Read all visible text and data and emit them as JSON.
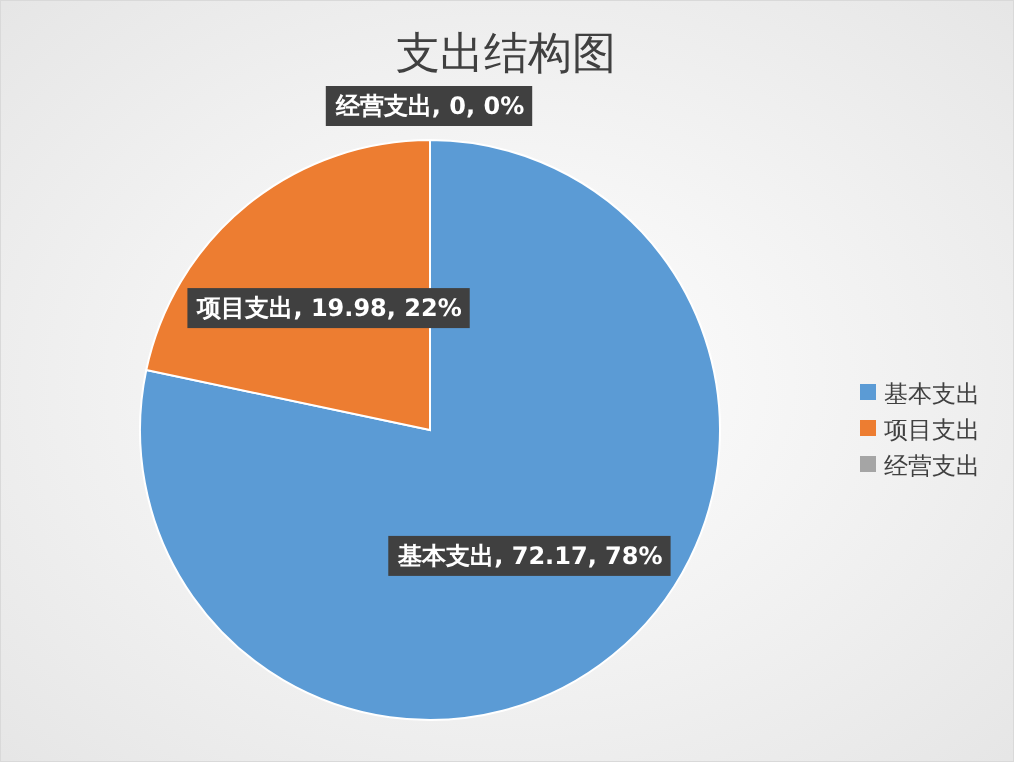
{
  "chart_data": {
    "type": "pie",
    "title": "支出结构图",
    "categories": [
      "基本支出",
      "项目支出",
      "经营支出"
    ],
    "values": [
      72.17,
      19.98,
      0
    ],
    "colors": [
      "#5b9bd5",
      "#ed7d31",
      "#a5a5a5"
    ],
    "value_labels": [
      "基本支出, 72.17, 78%",
      "项目支出, 19.98, 22%",
      "经营支出, 0, 0%"
    ],
    "legend": "right"
  }
}
